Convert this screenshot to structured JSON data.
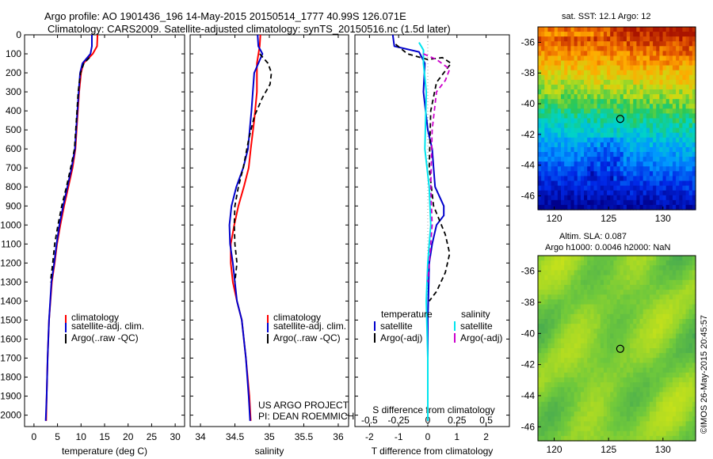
{
  "header": {
    "line1": "Argo profile: AO 1901436_196 14-May-2015 20150514_1777 40.99S 126.071E",
    "line2": "Climatology: CARS2009. Satellite-adjusted climatology: synTS_20150516.nc (1.5d later)"
  },
  "stamp": "©IMOS 26-May-2015 20:45:57",
  "colors": {
    "climatology": "#ff0000",
    "satellite": "#0000cc",
    "argo": "#000000",
    "sat_salinity": "#00e5ee",
    "argo_salinity": "#cc00cc"
  },
  "legend1": [
    {
      "label": "climatology",
      "color": "#ff0000",
      "dash": false
    },
    {
      "label": "satellite-adj. clim.",
      "color": "#0000cc",
      "dash": false
    },
    {
      "label": "Argo(..raw -QC)",
      "color": "#000000",
      "dash": true
    }
  ],
  "legend3": {
    "temperature_title": "temperature",
    "salinity_title": "salinity",
    "temp_items": [
      {
        "label": "satellite",
        "color": "#0000cc",
        "dash": false
      },
      {
        "label": "Argo(-adj)",
        "color": "#000000",
        "dash": true
      }
    ],
    "sal_items": [
      {
        "label": "satellite",
        "color": "#00e5ee",
        "dash": false
      },
      {
        "label": "Argo(-adj)",
        "color": "#cc00cc",
        "dash": true
      }
    ]
  },
  "credit": {
    "line1": "US ARGO PROJECT",
    "line2": "PI: DEAN ROEMMICH"
  },
  "chart_data": [
    {
      "type": "line",
      "xlabel": "temperature (deg C)",
      "xlim": [
        -2,
        32
      ],
      "ylim": [
        2060,
        0
      ],
      "xticks": [
        0,
        5,
        10,
        15,
        20,
        25,
        30
      ],
      "yticks": [
        0,
        100,
        200,
        300,
        400,
        500,
        600,
        700,
        800,
        900,
        1000,
        1100,
        1200,
        1300,
        1400,
        1500,
        1600,
        1700,
        1800,
        1900,
        2000
      ],
      "series": [
        {
          "name": "climatology",
          "color": "#ff0000",
          "dash": false,
          "width": 2,
          "x": [
            13.5,
            13.4,
            12.5,
            10.5,
            10.0,
            9.6,
            9.2,
            8.8,
            8.2,
            7.3,
            6.4,
            5.6,
            4.9,
            4.4,
            3.8,
            3.2,
            2.9,
            2.7,
            2.6
          ],
          "y": [
            0,
            60,
            100,
            150,
            200,
            300,
            450,
            600,
            700,
            800,
            900,
            1000,
            1100,
            1200,
            1300,
            1500,
            1700,
            1900,
            2030
          ]
        },
        {
          "name": "satellite-adj. clim.",
          "color": "#0000cc",
          "dash": false,
          "width": 2,
          "x": [
            12.3,
            12.3,
            12.0,
            10.3,
            9.8,
            9.5,
            9.1,
            8.7,
            8.0,
            7.1,
            6.2,
            5.4,
            4.8,
            4.3,
            3.7,
            3.2,
            2.9,
            2.7,
            2.5
          ],
          "y": [
            0,
            60,
            100,
            150,
            200,
            300,
            450,
            600,
            700,
            800,
            900,
            1000,
            1100,
            1200,
            1300,
            1500,
            1700,
            1900,
            2030
          ]
        },
        {
          "name": "Argo(..raw -QC)",
          "color": "#000000",
          "dash": true,
          "width": 1.8,
          "x": [
            11.8,
            10.6,
            9.9,
            9.4,
            9.0,
            8.6,
            7.8,
            6.9,
            5.9,
            5.1,
            4.4,
            4.0,
            3.5
          ],
          "y": [
            120,
            150,
            200,
            300,
            450,
            600,
            700,
            800,
            900,
            1000,
            1100,
            1200,
            1300
          ]
        }
      ]
    },
    {
      "type": "line",
      "xlabel": "salinity",
      "xlim": [
        33.85,
        36.15
      ],
      "ylim": [
        2060,
        0
      ],
      "xticks": [
        34,
        34.5,
        35,
        35.5,
        36
      ],
      "xticklabels": [
        "34",
        "34.5",
        "35",
        "35.5",
        "36"
      ],
      "yticks": [
        0,
        100,
        200,
        300,
        400,
        500,
        600,
        700,
        800,
        900,
        1000,
        1100,
        1200,
        1300,
        1400,
        1500,
        1600,
        1700,
        1800,
        1900,
        2000
      ],
      "series": [
        {
          "name": "climatology",
          "color": "#ff0000",
          "dash": false,
          "width": 2,
          "x": [
            34.87,
            34.86,
            34.82,
            34.82,
            34.78,
            34.73,
            34.7,
            34.63,
            34.55,
            34.49,
            34.44,
            34.44,
            34.47,
            34.53,
            34.6,
            34.66,
            34.71,
            34.73
          ],
          "y": [
            0,
            60,
            150,
            300,
            450,
            600,
            700,
            800,
            900,
            1000,
            1100,
            1200,
            1300,
            1400,
            1500,
            1700,
            1900,
            2030
          ]
        },
        {
          "name": "satellite-adj. clim.",
          "color": "#0000cc",
          "dash": false,
          "width": 2,
          "x": [
            34.83,
            34.84,
            34.9,
            34.78,
            34.74,
            34.69,
            34.62,
            34.52,
            34.45,
            34.42,
            34.43,
            34.47,
            34.53,
            34.6,
            34.66,
            34.7,
            34.72
          ],
          "y": [
            0,
            60,
            100,
            200,
            400,
            600,
            700,
            800,
            900,
            1000,
            1100,
            1200,
            1400,
            1500,
            1700,
            1900,
            2030
          ]
        },
        {
          "name": "Argo(..raw -QC)",
          "color": "#000000",
          "dash": true,
          "width": 1.8,
          "x": [
            34.86,
            34.98,
            35.03,
            35.01,
            34.9,
            34.78,
            34.7,
            34.62,
            34.55,
            34.5,
            34.49,
            34.5,
            34.53,
            34.5
          ],
          "y": [
            100,
            150,
            200,
            260,
            330,
            430,
            550,
            700,
            800,
            900,
            1000,
            1100,
            1200,
            1300
          ]
        }
      ]
    },
    {
      "type": "line",
      "xlabel": "T difference from climatology",
      "x2label": "S difference from climatology",
      "xlim": [
        -2.5,
        2.8
      ],
      "ylim": [
        2060,
        0
      ],
      "xticks": [
        -2,
        -1,
        0,
        1,
        2
      ],
      "x2ticks": [
        -0.5,
        -0.25,
        0,
        0.25,
        0.5
      ],
      "x2ticklabels": [
        "-0.5",
        "-0.25",
        "0",
        "0.25",
        "0.5"
      ],
      "x2scale": 4,
      "yticks": [
        0,
        100,
        200,
        300,
        400,
        500,
        600,
        700,
        800,
        900,
        1000,
        1100,
        1200,
        1300,
        1400,
        1500,
        1600,
        1700,
        1800,
        1900,
        2000
      ],
      "series": [
        {
          "name": "temperature satellite",
          "color": "#0000cc",
          "dash": false,
          "width": 2,
          "x": [
            -1.2,
            -1.15,
            -0.3,
            -0.1,
            -0.15,
            0.0,
            0.15,
            0.2,
            0.25,
            0.4,
            0.55,
            0.55,
            0.3,
            0.15,
            0.05,
            0.0,
            0.0,
            0.0
          ],
          "y": [
            0,
            60,
            90,
            150,
            300,
            500,
            600,
            700,
            800,
            850,
            900,
            950,
            1000,
            1100,
            1200,
            1500,
            1800,
            2030
          ]
        },
        {
          "name": "temperature Argo(-adj)",
          "color": "#000000",
          "dash": true,
          "width": 1.8,
          "x": [
            -1.1,
            -0.7,
            0.0,
            0.5,
            0.8,
            0.3,
            0.1,
            0.05,
            0.2,
            0.6,
            0.75,
            0.6,
            0.3,
            0.05
          ],
          "y": [
            50,
            100,
            130,
            120,
            150,
            250,
            400,
            700,
            900,
            1050,
            1150,
            1250,
            1350,
            1400
          ]
        },
        {
          "name": "salinity satellite",
          "color": "#00e5ee",
          "dash": false,
          "width": 2,
          "x": [
            -0.3,
            -0.15,
            -0.15,
            -0.05,
            -0.1,
            0.05,
            0.1,
            0.0,
            -0.05,
            0.0,
            0.0
          ],
          "y": [
            40,
            80,
            150,
            300,
            600,
            800,
            1000,
            1200,
            1400,
            1700,
            2030
          ]
        },
        {
          "name": "salinity Argo(-adj)",
          "color": "#cc00cc",
          "dash": true,
          "width": 1.8,
          "x": [
            -0.15,
            0.3,
            0.75,
            0.6,
            0.3,
            0.15,
            0.1,
            0.15,
            0.0
          ],
          "y": [
            100,
            130,
            180,
            240,
            300,
            500,
            800,
            1000,
            1300
          ]
        }
      ]
    }
  ],
  "maps": {
    "sst": {
      "title": "sat. SST: 12.1 Argo: 12",
      "lon_range": [
        118.5,
        133
      ],
      "lat_range": [
        -46.9,
        -35
      ],
      "xticks": [
        120,
        125,
        130
      ],
      "yticks": [
        -36,
        -38,
        -40,
        -42,
        -44,
        -46
      ],
      "argo_marker": {
        "lon": 126.071,
        "lat": -40.99
      }
    },
    "sla": {
      "title1": "Altim. SLA: 0.087",
      "title2": "Argo h1000: 0.0046 h2000: NaN",
      "lon_range": [
        118.5,
        133
      ],
      "lat_range": [
        -46.9,
        -35
      ],
      "xticks": [
        120,
        125,
        130
      ],
      "yticks": [
        -36,
        -38,
        -40,
        -42,
        -44,
        -46
      ],
      "argo_marker": {
        "lon": 126.071,
        "lat": -40.99
      }
    }
  }
}
